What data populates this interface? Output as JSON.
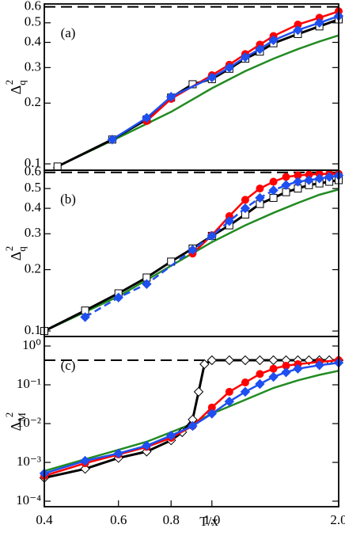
{
  "chart_data": [
    {
      "type": "line",
      "panel_label": "(a)",
      "ylabel": {
        "base": "Δ",
        "sub": "q",
        "sup": "2"
      },
      "log_x": true,
      "log_y": true,
      "xlim": [
        0.4,
        2.0
      ],
      "ylim": [
        0.093,
        0.62
      ],
      "yticks": [
        0.1,
        0.2,
        0.3,
        0.4,
        0.5,
        0.6
      ],
      "hline": 0.6,
      "series": [
        {
          "color": "#228b22",
          "marker": "none",
          "dash": false,
          "x": [
            0.42,
            0.6,
            0.8,
            1.0,
            1.2,
            1.4,
            1.6,
            1.8,
            2.0
          ],
          "values": [
            0.095,
            0.135,
            0.181,
            0.237,
            0.288,
            0.332,
            0.37,
            0.404,
            0.433
          ]
        },
        {
          "color": "#000000",
          "marker": "square",
          "dash": false,
          "x": [
            0.43,
            0.58,
            0.7,
            0.8,
            0.9,
            1.0,
            1.1,
            1.2,
            1.3,
            1.4,
            1.6,
            1.8,
            2.0
          ],
          "values": [
            0.097,
            0.132,
            0.166,
            0.213,
            0.248,
            0.263,
            0.296,
            0.332,
            0.36,
            0.396,
            0.44,
            0.48,
            0.52
          ]
        },
        {
          "color": "#ff0000",
          "marker": "circle",
          "dash": false,
          "x": [
            0.7,
            0.8,
            1.0,
            1.1,
            1.2,
            1.3,
            1.4,
            1.6,
            1.8,
            2.0
          ],
          "values": [
            0.163,
            0.21,
            0.275,
            0.31,
            0.35,
            0.39,
            0.43,
            0.49,
            0.53,
            0.57
          ]
        },
        {
          "color": "#1e4ff0",
          "marker": "diamond",
          "dash": false,
          "x": [
            0.58,
            0.7,
            0.8,
            1.0,
            1.1,
            1.2,
            1.3,
            1.4,
            1.6,
            1.8,
            2.0
          ],
          "values": [
            0.132,
            0.169,
            0.215,
            0.268,
            0.3,
            0.338,
            0.37,
            0.41,
            0.46,
            0.5,
            0.54
          ]
        }
      ]
    },
    {
      "type": "line",
      "panel_label": "(b)",
      "ylabel": {
        "base": "Δ",
        "sub": "q",
        "sup": "2"
      },
      "log_x": true,
      "log_y": true,
      "xlim": [
        0.4,
        2.0
      ],
      "ylim": [
        0.094,
        0.615
      ],
      "yticks": [
        0.1,
        0.2,
        0.3,
        0.4,
        0.5,
        0.6
      ],
      "hline": 0.6,
      "series": [
        {
          "color": "#228b22",
          "marker": "none",
          "dash": false,
          "x": [
            0.4,
            0.6,
            0.8,
            1.0,
            1.2,
            1.4,
            1.6,
            1.8,
            2.0
          ],
          "values": [
            0.1,
            0.148,
            0.209,
            0.273,
            0.33,
            0.38,
            0.425,
            0.466,
            0.495
          ]
        },
        {
          "color": "#000000",
          "marker": "square",
          "dash": false,
          "x": [
            0.4,
            0.5,
            0.6,
            0.7,
            0.8,
            0.9,
            1.0,
            1.1,
            1.2,
            1.3,
            1.4,
            1.5,
            1.6,
            1.7,
            1.8,
            1.9,
            2.0
          ],
          "values": [
            0.1,
            0.126,
            0.153,
            0.183,
            0.219,
            0.254,
            0.293,
            0.33,
            0.373,
            0.42,
            0.45,
            0.48,
            0.5,
            0.52,
            0.53,
            0.54,
            0.55
          ]
        },
        {
          "color": "#ff0000",
          "marker": "circle",
          "dash": false,
          "x": [
            0.9,
            1.0,
            1.1,
            1.2,
            1.3,
            1.4,
            1.5,
            1.6,
            1.7,
            1.8,
            1.9,
            2.0
          ],
          "values": [
            0.24,
            0.295,
            0.366,
            0.44,
            0.5,
            0.54,
            0.57,
            0.58,
            0.585,
            0.59,
            0.59,
            0.59
          ]
        },
        {
          "color": "#1e4ff0",
          "marker": "diamond",
          "dash": true,
          "x": [
            0.5,
            0.6,
            0.7,
            0.9,
            1.0,
            1.1,
            1.2,
            1.3,
            1.4,
            1.5,
            1.6,
            1.7,
            1.8,
            1.9,
            2.0
          ],
          "values": [
            0.117,
            0.146,
            0.17,
            0.25,
            0.293,
            0.346,
            0.4,
            0.45,
            0.49,
            0.52,
            0.54,
            0.55,
            0.56,
            0.57,
            0.58
          ]
        }
      ]
    },
    {
      "type": "line",
      "panel_label": "(c)",
      "ylabel": {
        "base": "Δ",
        "sub": "M",
        "sup": "2"
      },
      "xlabel": "T/x",
      "log_x": true,
      "log_y": true,
      "xlim": [
        0.4,
        2.0
      ],
      "ylim": [
        7.2e-05,
        1.76
      ],
      "xticks": [
        0.4,
        0.6,
        0.8,
        {
          "value": 1,
          "label": "1.0"
        },
        {
          "value": 2,
          "label": "2.0"
        }
      ],
      "yticks": [
        {
          "value": 0.0001,
          "label": "10⁻⁴"
        },
        {
          "value": 0.001,
          "label": "10⁻³"
        },
        {
          "value": 0.01,
          "label": "10⁻²"
        },
        {
          "value": 0.1,
          "label": "10⁻¹"
        },
        {
          "value": 1,
          "label": "10⁰"
        }
      ],
      "hline": 0.43,
      "series": [
        {
          "color": "#228b22",
          "marker": "none",
          "dash": false,
          "x": [
            0.4,
            0.5,
            0.6,
            0.7,
            0.8,
            0.9,
            1.0,
            1.2,
            1.4,
            1.6,
            1.8,
            2.0
          ],
          "values": [
            0.0006,
            0.0012,
            0.0021,
            0.0034,
            0.006,
            0.01,
            0.018,
            0.041,
            0.083,
            0.13,
            0.18,
            0.23
          ]
        },
        {
          "color": "#000000",
          "marker": "diamond-open",
          "dash": false,
          "x": [
            0.4,
            0.5,
            0.6,
            0.7,
            0.8,
            0.85,
            0.9,
            0.93,
            0.96,
            1.0,
            1.1,
            1.2,
            1.3,
            1.4,
            1.5,
            1.6,
            1.7,
            1.8,
            1.9,
            2.0
          ],
          "values": [
            0.0004,
            0.00068,
            0.0013,
            0.0019,
            0.0037,
            0.006,
            0.0127,
            0.066,
            0.34,
            0.43,
            0.43,
            0.43,
            0.43,
            0.43,
            0.43,
            0.43,
            0.43,
            0.43,
            0.43,
            0.43
          ]
        },
        {
          "color": "#ff0000",
          "marker": "circle",
          "dash": false,
          "x": [
            0.4,
            0.5,
            0.6,
            0.7,
            0.8,
            0.9,
            1.0,
            1.1,
            1.2,
            1.3,
            1.4,
            1.5,
            1.6,
            1.8,
            2.0
          ],
          "values": [
            0.00045,
            0.00095,
            0.0016,
            0.0025,
            0.0043,
            0.0087,
            0.026,
            0.066,
            0.115,
            0.19,
            0.26,
            0.31,
            0.34,
            0.39,
            0.43
          ]
        },
        {
          "color": "#1e4ff0",
          "marker": "diamond",
          "dash": false,
          "x": [
            0.4,
            0.5,
            0.6,
            0.7,
            0.8,
            0.9,
            1.0,
            1.1,
            1.2,
            1.3,
            1.4,
            1.5,
            1.6,
            1.8,
            2.0
          ],
          "values": [
            0.00052,
            0.0011,
            0.0017,
            0.0027,
            0.0049,
            0.0087,
            0.018,
            0.037,
            0.066,
            0.105,
            0.16,
            0.21,
            0.26,
            0.32,
            0.37
          ]
        }
      ]
    }
  ]
}
